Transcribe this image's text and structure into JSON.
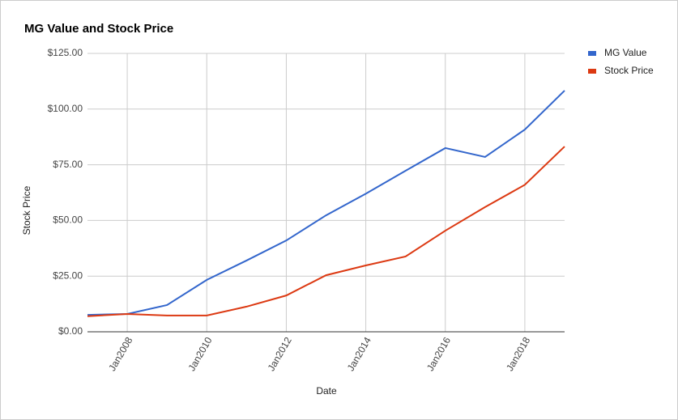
{
  "chart_data": {
    "type": "line",
    "title": "MG Value and Stock Price",
    "x_label": "Date",
    "y_label": "Stock Price",
    "x": [
      2007,
      2008,
      2009,
      2010,
      2011,
      2012,
      2013,
      2014,
      2015,
      2016,
      2017,
      2018,
      2019
    ],
    "series": [
      {
        "name": "MG Value",
        "color": "#3366cc",
        "values": [
          7.6,
          8,
          12,
          23.3,
          32,
          41,
          52.3,
          62,
          72.3,
          82.5,
          78.5,
          90.8,
          108.3
        ]
      },
      {
        "name": "Stock Price",
        "color": "#dc3912",
        "values": [
          7,
          8,
          7.3,
          7.3,
          11.3,
          16.3,
          25.4,
          29.8,
          33.8,
          45.4,
          56,
          66,
          83.2
        ]
      }
    ],
    "xlim": [
      2007,
      2019
    ],
    "xticks": [
      {
        "value": 2008,
        "label": "Jan2008"
      },
      {
        "value": 2010,
        "label": "Jan2010"
      },
      {
        "value": 2012,
        "label": "Jan2012"
      },
      {
        "value": 2014,
        "label": "Jan2014"
      },
      {
        "value": 2016,
        "label": "Jan2016"
      },
      {
        "value": 2018,
        "label": "Jan2018"
      }
    ],
    "ylim": [
      0,
      125
    ],
    "yticks": [
      {
        "value": 0,
        "label": "$0.00"
      },
      {
        "value": 25,
        "label": "$25.00"
      },
      {
        "value": 50,
        "label": "$50.00"
      },
      {
        "value": 75,
        "label": "$75.00"
      },
      {
        "value": 100,
        "label": "$100.00"
      },
      {
        "value": 125,
        "label": "$125.00"
      }
    ],
    "grid": true,
    "legend": "right"
  }
}
